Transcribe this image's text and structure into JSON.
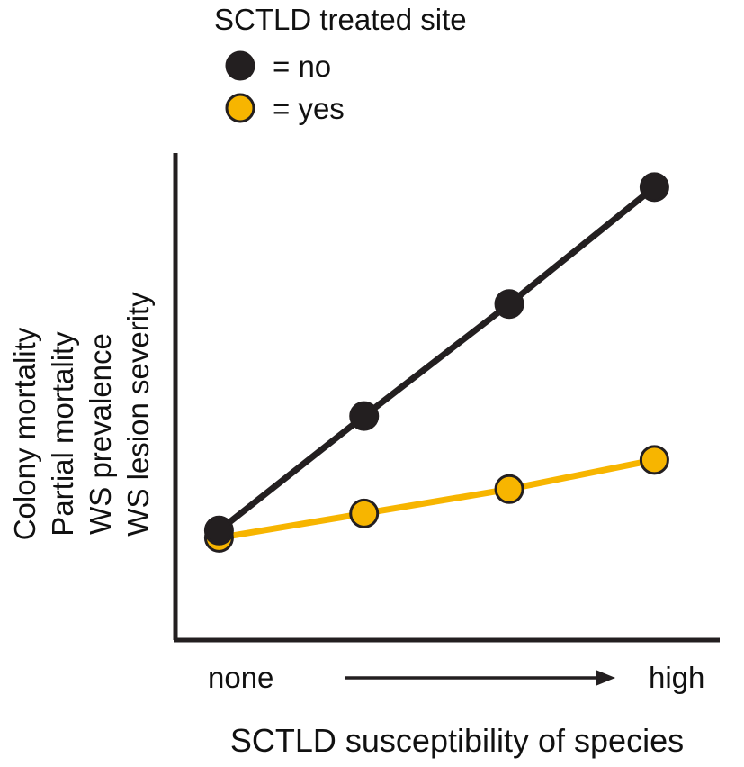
{
  "chart_data": {
    "type": "line",
    "title": "",
    "legend": {
      "title": "SCTLD treated site",
      "placement": "top-left",
      "entries": [
        {
          "label": "= no",
          "color": "#231f20"
        },
        {
          "label": "= yes",
          "color": "#f7b500"
        }
      ]
    },
    "xlabel": "SCTLD susceptibility of species",
    "x_tick_labels": {
      "low": "none",
      "high": "high"
    },
    "x_arrow": true,
    "ylabel_lines": [
      "Colony mortality",
      "Partial mortality",
      "WS prevalence",
      "WS lesion severity"
    ],
    "x": [
      0,
      1,
      2,
      3
    ],
    "xlim": [
      -0.3,
      3.45
    ],
    "ylim": [
      0,
      10
    ],
    "grid": false,
    "series": [
      {
        "name": "= yes",
        "color": "#f7b500",
        "line_color": "#f7b500",
        "values": [
          2.1,
          2.6,
          3.1,
          3.7
        ]
      },
      {
        "name": "= no",
        "color": "#231f20",
        "line_color": "#231f20",
        "values": [
          2.25,
          4.6,
          6.9,
          9.3
        ]
      }
    ]
  }
}
